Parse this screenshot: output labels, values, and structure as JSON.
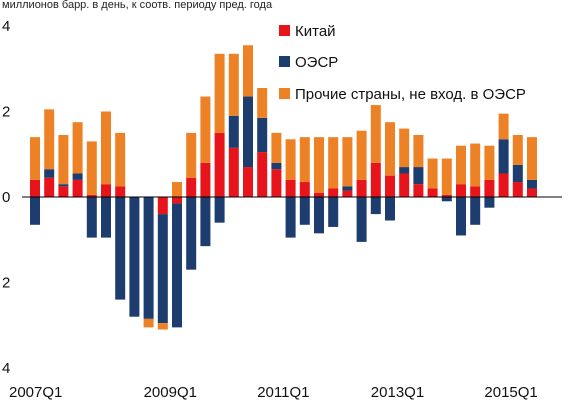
{
  "chart_data": {
    "type": "bar",
    "stacked": true,
    "subtitle": "миллионов барр. в день, к соотв. периоду пред. года",
    "categories": [
      "2007Q1",
      "2007Q2",
      "2007Q3",
      "2007Q4",
      "2008Q1",
      "2008Q2",
      "2008Q3",
      "2008Q4",
      "2009Q1",
      "2009Q2",
      "2009Q3",
      "2009Q4",
      "2010Q1",
      "2010Q2",
      "2010Q3",
      "2010Q4",
      "2011Q1",
      "2011Q2",
      "2011Q3",
      "2011Q4",
      "2012Q1",
      "2012Q2",
      "2012Q3",
      "2012Q4",
      "2013Q1",
      "2013Q2",
      "2013Q3",
      "2013Q4",
      "2014Q1",
      "2014Q2",
      "2014Q3",
      "2014Q4",
      "2015Q1",
      "2015Q2",
      "2015Q3",
      "2015Q4"
    ],
    "x_tick_labels": [
      "2007Q1",
      "2009Q1",
      "2011Q1",
      "2013Q1",
      "2015Q1"
    ],
    "x_tick_categories": [
      "2007Q1",
      "2009Q1",
      "2011Q1",
      "2013Q1",
      "2015Q1"
    ],
    "y_tick_labels": [
      "4",
      "2",
      "0",
      "2",
      "4"
    ],
    "y_tick_values": [
      4,
      2,
      0,
      -2,
      -4
    ],
    "ylim": [
      -4,
      4
    ],
    "grid": false,
    "legend_position": "top-right",
    "series": [
      {
        "name": "Китай",
        "color": "#e8141b",
        "values": [
          0.4,
          0.45,
          0.25,
          0.4,
          0.05,
          0.3,
          0.25,
          0.0,
          0.0,
          -0.4,
          -0.15,
          0.45,
          0.8,
          1.5,
          1.15,
          0.7,
          1.05,
          0.65,
          0.4,
          0.35,
          0.1,
          0.2,
          0.15,
          0.4,
          0.8,
          0.5,
          0.55,
          0.3,
          0.2,
          0.05,
          0.3,
          0.25,
          0.4,
          0.55,
          0.35,
          0.2
        ]
      },
      {
        "name": "ОЭСР",
        "color": "#1c3d6e",
        "values": [
          -0.65,
          0.2,
          0.05,
          0.15,
          -0.95,
          -0.95,
          -2.4,
          -2.8,
          -2.85,
          -2.55,
          -2.9,
          -1.7,
          -1.15,
          -0.6,
          0.75,
          1.65,
          0.8,
          0.15,
          -0.95,
          -0.65,
          -0.85,
          -0.7,
          0.1,
          -1.05,
          -0.4,
          -0.55,
          0.15,
          0.4,
          0.0,
          -0.1,
          -0.9,
          -0.65,
          -0.25,
          0.8,
          0.4,
          0.2
        ]
      },
      {
        "name": "Прочие страны, не вход. в ОЭСР",
        "color": "#ec8126",
        "values": [
          1.0,
          1.4,
          1.15,
          1.2,
          1.25,
          1.7,
          1.25,
          0.0,
          -0.2,
          -0.15,
          0.35,
          1.05,
          1.55,
          1.85,
          1.45,
          1.2,
          0.7,
          0.7,
          0.95,
          1.05,
          1.3,
          1.2,
          1.15,
          1.15,
          1.35,
          1.25,
          0.9,
          0.75,
          0.7,
          0.85,
          0.9,
          1.0,
          0.8,
          0.6,
          0.7,
          1.0
        ]
      }
    ]
  }
}
